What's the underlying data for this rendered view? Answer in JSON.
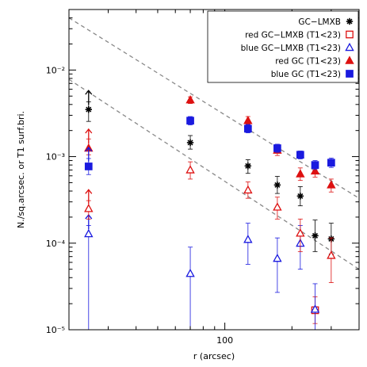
{
  "chart_data": {
    "type": "scatter",
    "title": "",
    "xlabel": "r (arcsec)",
    "ylabel": "N./sq.arcsec. or T1 surf.bri.",
    "xscale": "log",
    "yscale": "log",
    "xlim": [
      20,
      400
    ],
    "ylim": [
      1e-05,
      0.05
    ],
    "x_tick_labels": [
      {
        "value": 100,
        "text": "100"
      }
    ],
    "y_tick_labels": [
      {
        "value": 1e-05,
        "text": "10⁻⁵"
      },
      {
        "value": 0.0001,
        "text": "10⁻⁴"
      },
      {
        "value": 0.001,
        "text": "10⁻³"
      },
      {
        "value": 0.01,
        "text": "10⁻²"
      }
    ],
    "legend_placement": "top-right",
    "series": [
      {
        "name": "GC−LMXB",
        "color": "#000000",
        "marker": "asterisk",
        "points": [
          {
            "x": 24.5,
            "y": 0.0035,
            "err_lo": 0.00255,
            "err_hi": 0.0043,
            "upper_arrow": true
          },
          {
            "x": 70,
            "y": 0.00145,
            "err_lo": 0.00122,
            "err_hi": 0.00175
          },
          {
            "x": 127,
            "y": 0.00078,
            "err_lo": 0.00064,
            "err_hi": 0.00092
          },
          {
            "x": 172,
            "y": 0.00047,
            "err_lo": 0.000375,
            "err_hi": 0.00059
          },
          {
            "x": 218,
            "y": 0.00035,
            "err_lo": 0.00027,
            "err_hi": 0.00045
          },
          {
            "x": 254,
            "y": 0.000122,
            "err_lo": 8e-05,
            "err_hi": 0.000185
          },
          {
            "x": 300,
            "y": 0.000112,
            "err_lo": 7.5e-05,
            "err_hi": 0.00017
          }
        ]
      },
      {
        "name": "red GC−LMXB (T1<23)",
        "color": "#dd1111",
        "marker": "open-square",
        "points": [
          {
            "x": 254,
            "y": 1.68e-05,
            "err_lo": 1.18e-05,
            "err_hi": 2.4e-05
          }
        ]
      },
      {
        "name": "blue GC−LMXB (T1<23)",
        "color": "#1a1adf",
        "marker": "open-triangle",
        "points": [
          {
            "x": 24.5,
            "y": 0.000128,
            "err_lo": 1e-05,
            "err_hi": 0.00016,
            "upper_arrow": true
          },
          {
            "x": 70,
            "y": 4.45e-05,
            "err_lo": 1e-05,
            "err_hi": 9e-05
          },
          {
            "x": 127,
            "y": 0.00011,
            "err_lo": 5.7e-05,
            "err_hi": 0.00017
          },
          {
            "x": 172,
            "y": 6.65e-05,
            "err_lo": 2.7e-05,
            "err_hi": 0.000115
          },
          {
            "x": 218,
            "y": 9.95e-05,
            "err_lo": 5e-05,
            "err_hi": 0.00016
          },
          {
            "x": 254,
            "y": 1.72e-05,
            "err_lo": 1e-05,
            "err_hi": 3.4e-05
          }
        ]
      },
      {
        "name": "red GC (T1<23)",
        "color": "#dd1111",
        "marker": "filled-triangle",
        "points": [
          {
            "x": 24.5,
            "y": 0.00125,
            "err_lo": 0.00105,
            "err_hi": 0.0016,
            "upper_arrow": true
          },
          {
            "x": 70,
            "y": 0.0045,
            "err_lo": 0.0041,
            "err_hi": 0.0049
          },
          {
            "x": 127,
            "y": 0.0026,
            "err_lo": 0.00235,
            "err_hi": 0.0029
          },
          {
            "x": 172,
            "y": 0.00118,
            "err_lo": 0.00103,
            "err_hi": 0.00132
          },
          {
            "x": 218,
            "y": 0.00063,
            "err_lo": 0.00053,
            "err_hi": 0.00074
          },
          {
            "x": 254,
            "y": 0.00068,
            "err_lo": 0.00058,
            "err_hi": 0.00079
          },
          {
            "x": 300,
            "y": 0.00047,
            "err_lo": 0.00039,
            "err_hi": 0.00055
          }
        ]
      },
      {
        "name": "blue GC (T1<23)",
        "color": "#1a1adf",
        "marker": "filled-square",
        "points": [
          {
            "x": 24.5,
            "y": 0.00077,
            "err_lo": 0.00062,
            "err_hi": 0.00095,
            "upper_arrow": true
          },
          {
            "x": 70,
            "y": 0.0026,
            "err_lo": 0.00232,
            "err_hi": 0.0029
          },
          {
            "x": 127,
            "y": 0.0021,
            "err_lo": 0.00188,
            "err_hi": 0.00235
          },
          {
            "x": 172,
            "y": 0.00125,
            "err_lo": 0.00112,
            "err_hi": 0.00139
          },
          {
            "x": 218,
            "y": 0.00105,
            "err_lo": 0.00094,
            "err_hi": 0.00116
          },
          {
            "x": 254,
            "y": 0.0008,
            "err_lo": 0.00071,
            "err_hi": 0.0009
          },
          {
            "x": 300,
            "y": 0.00085,
            "err_lo": 0.00075,
            "err_hi": 0.00096
          }
        ]
      },
      {
        "name": "red GC−LMXB (T1<23), triangles",
        "color": "#dd1111",
        "marker": "open-triangle",
        "points": [
          {
            "x": 24.5,
            "y": 0.00025,
            "err_lo": 0.00019,
            "err_hi": 0.00031,
            "upper_arrow": true
          },
          {
            "x": 70,
            "y": 0.0007,
            "err_lo": 0.00055,
            "err_hi": 0.00087
          },
          {
            "x": 127,
            "y": 0.00041,
            "err_lo": 0.00033,
            "err_hi": 0.00051
          },
          {
            "x": 172,
            "y": 0.00026,
            "err_lo": 0.00019,
            "err_hi": 0.00034
          },
          {
            "x": 218,
            "y": 0.00013,
            "err_lo": 8e-05,
            "err_hi": 0.00019
          },
          {
            "x": 300,
            "y": 7.2e-05,
            "err_lo": 3.5e-05,
            "err_hi": 0.000115
          }
        ]
      }
    ],
    "reference_lines": [
      {
        "style": "dashed",
        "color": "#888888",
        "from": [
          20,
          0.04
        ],
        "to": [
          400,
          0.00033
        ]
      },
      {
        "style": "dashed",
        "color": "#888888",
        "from": [
          20,
          0.0078
        ],
        "to": [
          400,
          5e-05
        ]
      }
    ],
    "legend": [
      {
        "label": "GC−LMXB",
        "color": "#000000",
        "marker": "asterisk"
      },
      {
        "label": "red GC−LMXB (T1<23)",
        "color": "#dd1111",
        "marker": "open-square"
      },
      {
        "label": "blue GC−LMXB (T1<23)",
        "color": "#1a1adf",
        "marker": "open-triangle"
      },
      {
        "label": "red GC (T1<23)",
        "color": "#dd1111",
        "marker": "filled-triangle"
      },
      {
        "label": "blue GC (T1<23)",
        "color": "#1a1adf",
        "marker": "filled-square"
      }
    ]
  }
}
